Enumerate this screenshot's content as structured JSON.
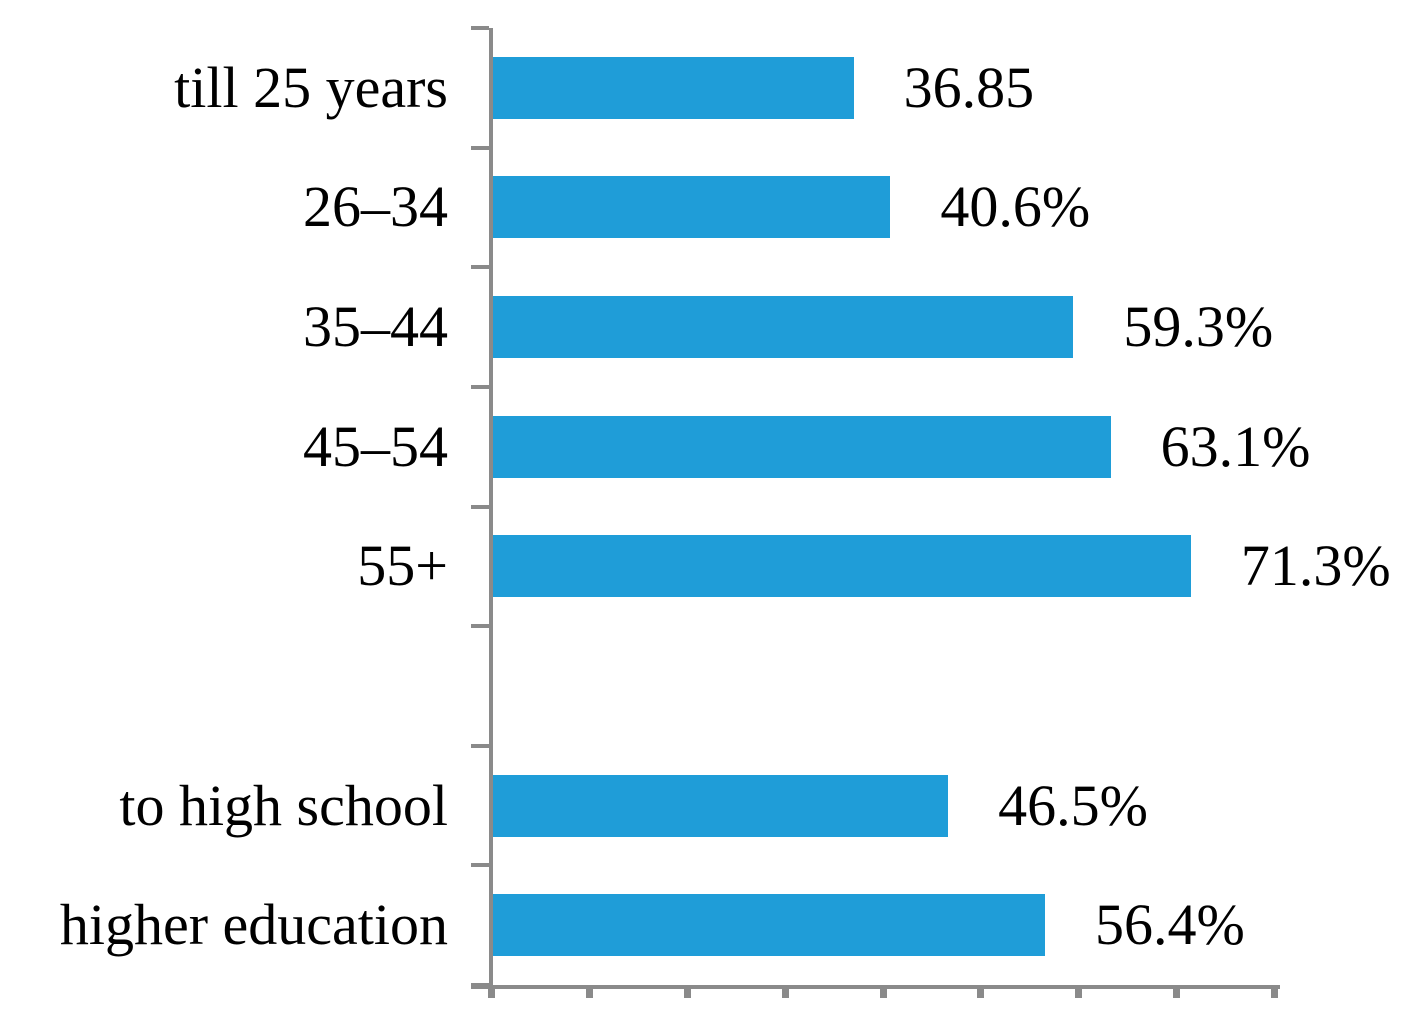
{
  "chart_data": {
    "type": "bar",
    "orientation": "horizontal",
    "title": "",
    "xlabel": "",
    "ylabel": "",
    "categories": [
      "till 25 years",
      "26–34",
      "35–44",
      "45–54",
      "55+",
      "",
      "to high school",
      "higher education"
    ],
    "values": [
      36.85,
      40.6,
      59.3,
      63.1,
      71.3,
      null,
      46.5,
      56.4
    ],
    "value_labels": [
      "36.85",
      "40.6%",
      "59.3%",
      "63.1%",
      "71.3%",
      "",
      "46.5%",
      "56.4%"
    ],
    "xlim": [
      0,
      80
    ],
    "x_tick_step": 10,
    "grid": false,
    "legend": null,
    "bar_color": "#1f9dd8",
    "axis_color": "#8a8a8a",
    "text_color": "#000000"
  }
}
